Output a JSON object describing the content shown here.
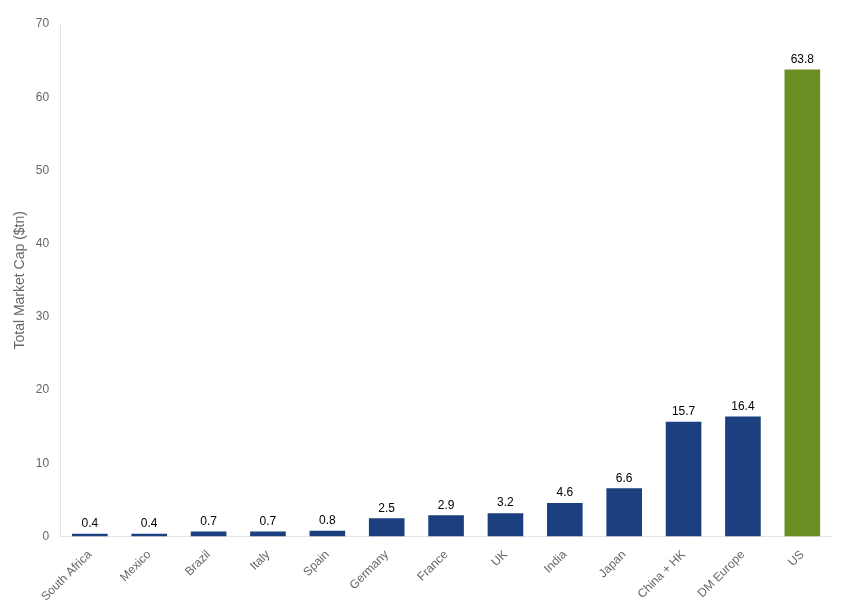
{
  "chart_data": {
    "type": "bar",
    "categories": [
      "South Africa",
      "Mexico",
      "Brazil",
      "Italy",
      "Spain",
      "Germany",
      "France",
      "UK",
      "India",
      "Japan",
      "China + HK",
      "DM Europe",
      "US"
    ],
    "values": [
      0.4,
      0.4,
      0.7,
      0.7,
      0.8,
      2.5,
      2.9,
      3.2,
      4.6,
      6.6,
      15.7,
      16.4,
      63.8
    ],
    "colors": [
      "#1b3f7f",
      "#1b3f7f",
      "#1b3f7f",
      "#1b3f7f",
      "#1b3f7f",
      "#1b3f7f",
      "#1b3f7f",
      "#1b3f7f",
      "#1b3f7f",
      "#1b3f7f",
      "#1b3f7f",
      "#1b3f7f",
      "#6b8e23"
    ],
    "ylabel": "Total Market Cap ($tn)",
    "ylim": [
      0,
      70
    ],
    "yticks": [
      0,
      10,
      20,
      30,
      40,
      50,
      60,
      70
    ],
    "grid": false,
    "data_labels": true
  }
}
